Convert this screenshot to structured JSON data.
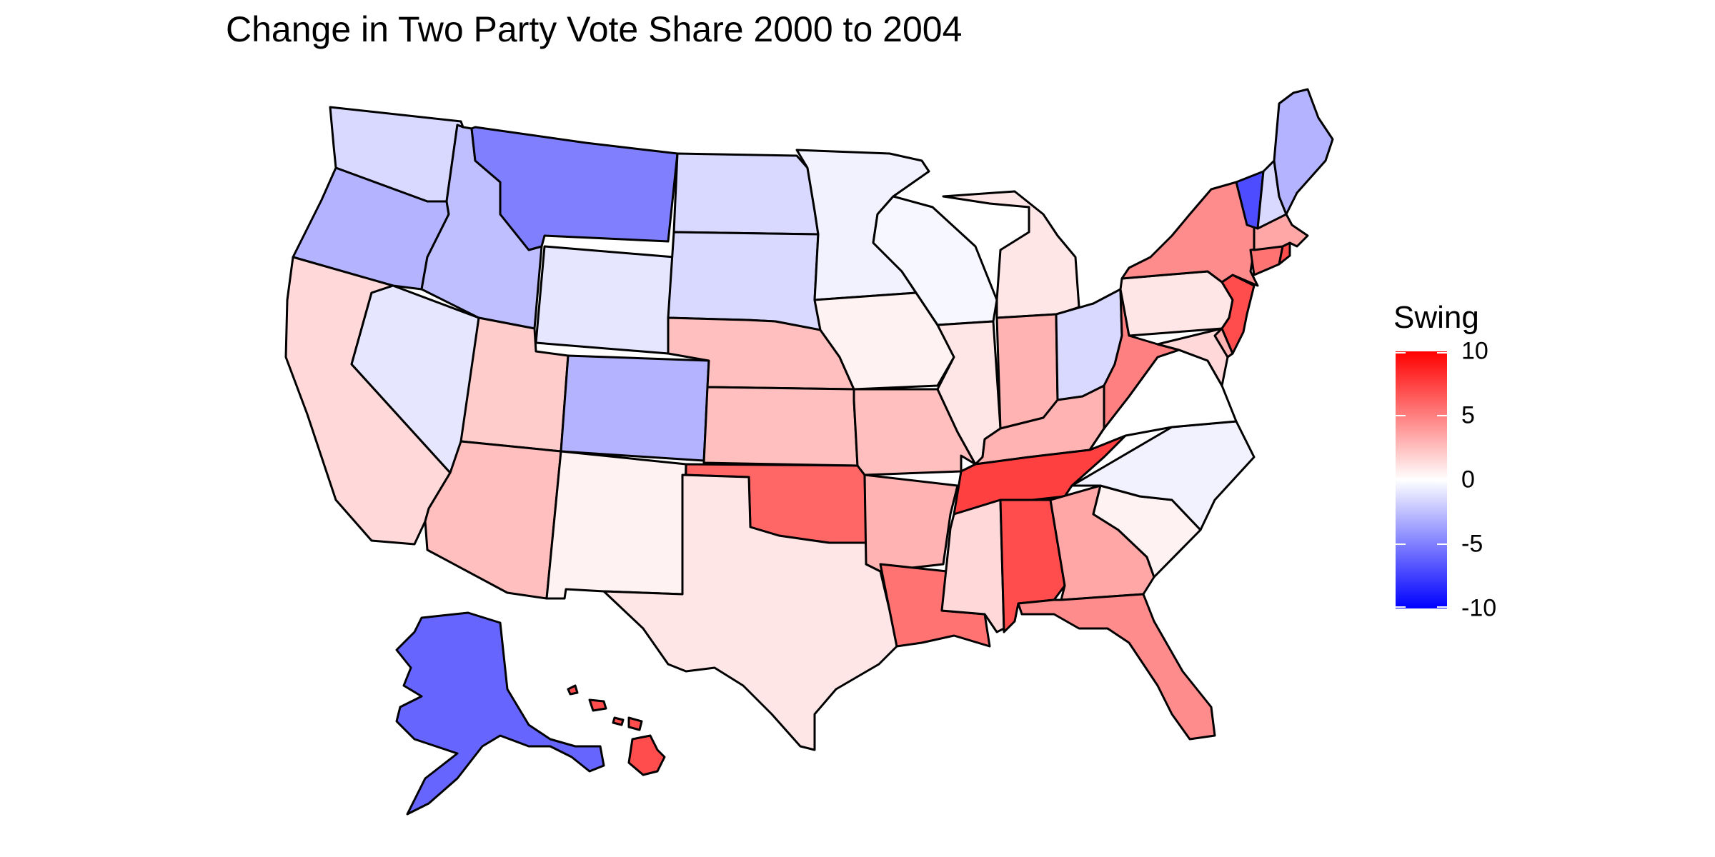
{
  "title": "Change in Two Party Vote Share 2000 to 2004",
  "legend": {
    "title": "Swing",
    "ticks": [
      "10",
      "5",
      "0",
      "-5",
      "-10"
    ],
    "tick_values": [
      10,
      5,
      0,
      -5,
      -10
    ],
    "range": [
      -10,
      10
    ],
    "colors": {
      "high": "#ff0000",
      "mid": "#ffffff",
      "low": "#0000ff"
    }
  },
  "map_data": {
    "type": "choropleth",
    "variable": "Swing",
    "region": "United States",
    "states": [
      {
        "name": "Washington",
        "swing": -1.5
      },
      {
        "name": "Oregon",
        "swing": -3.0
      },
      {
        "name": "California",
        "swing": 1.5
      },
      {
        "name": "Nevada",
        "swing": -1.0
      },
      {
        "name": "Idaho",
        "swing": -2.5
      },
      {
        "name": "Montana",
        "swing": -5.0
      },
      {
        "name": "Wyoming",
        "swing": -1.0
      },
      {
        "name": "Utah",
        "swing": 2.0
      },
      {
        "name": "Arizona",
        "swing": 2.5
      },
      {
        "name": "Colorado",
        "swing": -3.0
      },
      {
        "name": "New Mexico",
        "swing": 0.5
      },
      {
        "name": "North Dakota",
        "swing": -1.5
      },
      {
        "name": "South Dakota",
        "swing": -1.5
      },
      {
        "name": "Nebraska",
        "swing": 2.5
      },
      {
        "name": "Kansas",
        "swing": 2.5
      },
      {
        "name": "Oklahoma",
        "swing": 6.0
      },
      {
        "name": "Texas",
        "swing": 1.0
      },
      {
        "name": "Minnesota",
        "swing": -0.5
      },
      {
        "name": "Iowa",
        "swing": 0.5
      },
      {
        "name": "Missouri",
        "swing": 2.5
      },
      {
        "name": "Arkansas",
        "swing": 3.0
      },
      {
        "name": "Louisiana",
        "swing": 5.5
      },
      {
        "name": "Wisconsin",
        "swing": -0.3
      },
      {
        "name": "Illinois",
        "swing": 1.0
      },
      {
        "name": "Michigan",
        "swing": 1.0
      },
      {
        "name": "Indiana",
        "swing": 3.0
      },
      {
        "name": "Ohio",
        "swing": -1.5
      },
      {
        "name": "Kentucky",
        "swing": 3.0
      },
      {
        "name": "Tennessee",
        "swing": 7.5
      },
      {
        "name": "Mississippi",
        "swing": 1.5
      },
      {
        "name": "Alabama",
        "swing": 7.0
      },
      {
        "name": "Georgia",
        "swing": 3.5
      },
      {
        "name": "Florida",
        "swing": 4.5
      },
      {
        "name": "South Carolina",
        "swing": 0.5
      },
      {
        "name": "North Carolina",
        "swing": -0.5
      },
      {
        "name": "Virginia",
        "swing": 0.0
      },
      {
        "name": "West Virginia",
        "swing": 5.0
      },
      {
        "name": "Pennsylvania",
        "swing": 1.0
      },
      {
        "name": "New York",
        "swing": 4.5
      },
      {
        "name": "Vermont",
        "swing": -7.0
      },
      {
        "name": "New Hampshire",
        "swing": -1.5
      },
      {
        "name": "Maine",
        "swing": -3.0
      },
      {
        "name": "Massachusetts",
        "swing": 3.5
      },
      {
        "name": "Rhode Island",
        "swing": 7.0
      },
      {
        "name": "Connecticut",
        "swing": 5.5
      },
      {
        "name": "New Jersey",
        "swing": 7.0
      },
      {
        "name": "Delaware",
        "swing": 3.0
      },
      {
        "name": "Maryland",
        "swing": 1.5
      },
      {
        "name": "Alaska",
        "swing": -6.0
      },
      {
        "name": "Hawaii",
        "swing": 7.0
      }
    ]
  }
}
